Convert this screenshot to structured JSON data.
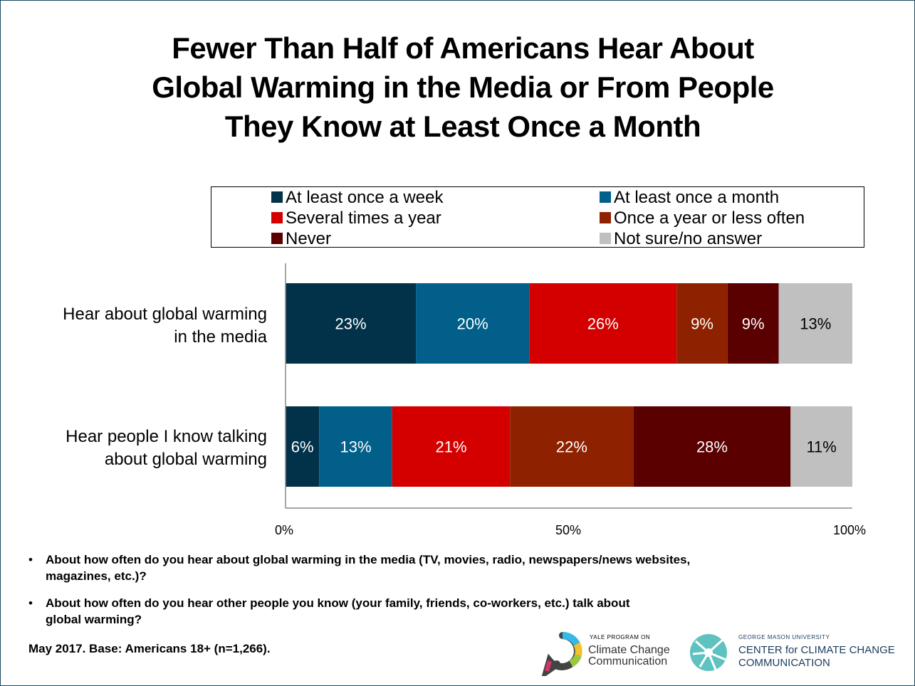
{
  "title_lines": [
    "Fewer Than Half of Americans Hear About",
    "Global Warming in the Media or From People",
    "They Know at Least Once a Month"
  ],
  "chart_data": {
    "type": "bar",
    "orientation": "horizontal",
    "stacked": true,
    "categories": [
      [
        "Hear about global warming",
        "in the media"
      ],
      [
        "Hear people I know talking",
        "about global warming"
      ]
    ],
    "series": [
      {
        "name": "At least once a week",
        "color": "#01324a",
        "values": [
          23,
          6
        ]
      },
      {
        "name": "At least once a month",
        "color": "#015f8a",
        "values": [
          20,
          13
        ]
      },
      {
        "name": "Several times a year",
        "color": "#d40000",
        "values": [
          26,
          21
        ]
      },
      {
        "name": "Once a year or less often",
        "color": "#8e2100",
        "values": [
          9,
          22
        ]
      },
      {
        "name": "Never",
        "color": "#5a0000",
        "values": [
          9,
          28
        ]
      },
      {
        "name": "Not sure/no answer",
        "color": "#c0c0c0",
        "values": [
          13,
          11
        ]
      }
    ],
    "xlim": [
      0,
      100
    ],
    "x_ticks": [
      "0%",
      "50%",
      "100%"
    ],
    "legend_position": "top",
    "grid": false
  },
  "notes": [
    [
      "About how often do you hear about global warming in the media (TV, movies, radio, newspapers/news websites,",
      "magazines, etc.)?"
    ],
    [
      "About how often do you hear other people you know (your family, friends, co-workers, etc.) talk about",
      "global warming?"
    ]
  ],
  "note_bullet": "•",
  "base_note": "May 2017. Base: Americans 18+ (n=1,266).",
  "logo_yale": {
    "small": "YALE PROGRAM ON",
    "line1": "Climate Change",
    "line2": "Communication",
    "icon": "speech-ring-icon"
  },
  "logo_gmu": {
    "small": "GEORGE MASON UNIVERSITY",
    "line1": "CENTER for CLIMATE CHANGE",
    "line2": "COMMUNICATION",
    "icon": "swirl-icon"
  }
}
